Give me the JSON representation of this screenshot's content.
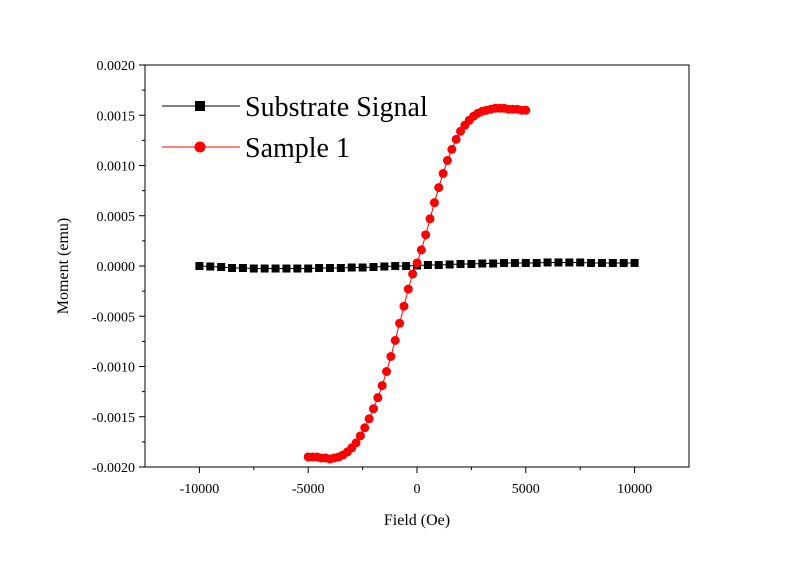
{
  "chart_data": {
    "type": "scatter",
    "title": "",
    "xlabel": "Field (Oe)",
    "ylabel": "Moment (emu)",
    "xlim": [
      -12500,
      12500
    ],
    "ylim": [
      -0.002,
      0.002
    ],
    "x_ticks": [
      "-10000",
      "-5000",
      "0",
      "5000",
      "10000"
    ],
    "y_ticks": [
      "0.0020",
      "0.0015",
      "0.0010",
      "0.0005",
      "0.0000",
      "-0.0005",
      "-0.0010",
      "-0.0015",
      "-0.0020"
    ],
    "grid": false,
    "legend_position": "top-left",
    "series": [
      {
        "name": "Substrate Signal",
        "color": "#000000",
        "marker": "square",
        "x": [
          -10000,
          -9500,
          -9000,
          -8500,
          -8000,
          -7500,
          -7000,
          -6500,
          -6000,
          -5500,
          -5000,
          -4500,
          -4000,
          -3500,
          -3000,
          -2500,
          -2000,
          -1500,
          -1000,
          -500,
          0,
          500,
          1000,
          1500,
          2000,
          2500,
          3000,
          3500,
          4000,
          4500,
          5000,
          5500,
          6000,
          6500,
          7000,
          7500,
          8000,
          8500,
          9000,
          9500,
          10000
        ],
        "y": [
          0.0,
          -5e-06,
          -1e-05,
          -2e-05,
          -2e-05,
          -2.5e-05,
          -2.5e-05,
          -2.5e-05,
          -2.5e-05,
          -2.5e-05,
          -2.5e-05,
          -2e-05,
          -2e-05,
          -2e-05,
          -1.5e-05,
          -1.5e-05,
          -1e-05,
          -5e-06,
          0.0,
          0.0,
          5e-06,
          1e-05,
          1e-05,
          1.5e-05,
          2e-05,
          2e-05,
          2.5e-05,
          2.5e-05,
          3e-05,
          3e-05,
          3e-05,
          3e-05,
          3.5e-05,
          3.5e-05,
          3.5e-05,
          3.5e-05,
          3e-05,
          3e-05,
          3e-05,
          3e-05,
          3e-05
        ]
      },
      {
        "name": "Sample 1",
        "color": "#ff0000",
        "marker": "circle",
        "x": [
          -5000,
          -4800,
          -4600,
          -4400,
          -4200,
          -4000,
          -3800,
          -3600,
          -3400,
          -3200,
          -3000,
          -2800,
          -2600,
          -2400,
          -2200,
          -2000,
          -1800,
          -1600,
          -1400,
          -1200,
          -1000,
          -800,
          -600,
          -400,
          -200,
          0,
          200,
          400,
          600,
          800,
          1000,
          1200,
          1400,
          1600,
          1800,
          2000,
          2200,
          2400,
          2600,
          2800,
          3000,
          3200,
          3400,
          3600,
          3800,
          4000,
          4200,
          4400,
          4600,
          4800,
          5000
        ],
        "y": [
          -0.0019,
          -0.0019,
          -0.0019,
          -0.00191,
          -0.00191,
          -0.00192,
          -0.00191,
          -0.0019,
          -0.00188,
          -0.00185,
          -0.00181,
          -0.00176,
          -0.00169,
          -0.00161,
          -0.00152,
          -0.00142,
          -0.00131,
          -0.00119,
          -0.00105,
          -0.0009,
          -0.00074,
          -0.00057,
          -0.0004,
          -0.00023,
          -8e-05,
          3e-05,
          0.00016,
          0.00031,
          0.00047,
          0.00063,
          0.00078,
          0.00092,
          0.00105,
          0.00116,
          0.00126,
          0.00134,
          0.0014,
          0.00145,
          0.00149,
          0.00152,
          0.00154,
          0.00155,
          0.00156,
          0.00157,
          0.00157,
          0.00157,
          0.00156,
          0.00156,
          0.00156,
          0.00155,
          0.00155
        ]
      }
    ]
  }
}
